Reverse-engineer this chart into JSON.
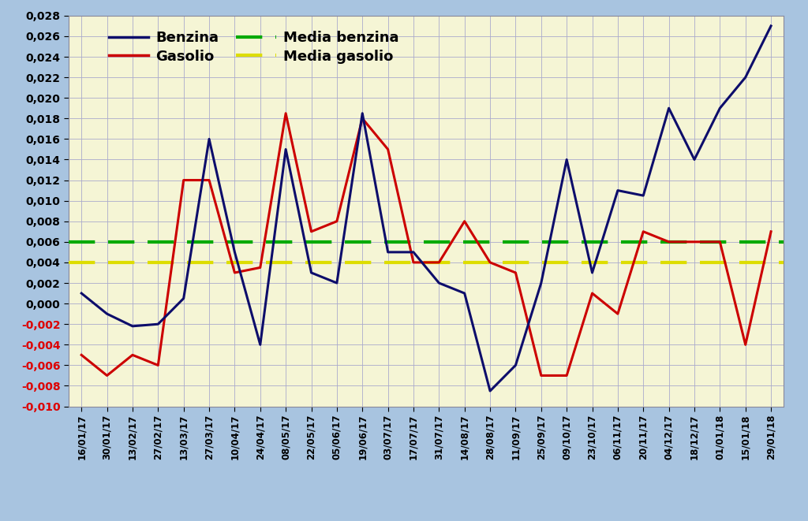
{
  "labels": [
    "16/01/17",
    "30/01/17",
    "13/02/17",
    "27/02/17",
    "13/03/17",
    "27/03/17",
    "10/04/17",
    "24/04/17",
    "08/05/17",
    "22/05/17",
    "05/06/17",
    "19/06/17",
    "03/07/17",
    "17/07/17",
    "31/07/17",
    "14/08/17",
    "28/08/17",
    "11/09/17",
    "25/09/17",
    "09/10/17",
    "23/10/17",
    "06/11/17",
    "20/11/17",
    "04/12/17",
    "18/12/17",
    "01/01/18",
    "15/01/18",
    "29/01/18"
  ],
  "benzina": [
    0.001,
    -0.001,
    -0.0022,
    -0.002,
    0.0005,
    0.016,
    0.005,
    -0.004,
    0.015,
    0.003,
    0.002,
    0.0185,
    0.005,
    0.005,
    0.002,
    0.001,
    -0.0085,
    -0.006,
    0.002,
    0.014,
    0.003,
    0.011,
    0.0105,
    0.019,
    0.014,
    0.019,
    0.022,
    0.027
  ],
  "gasolio": [
    -0.005,
    -0.007,
    -0.005,
    -0.006,
    0.012,
    0.012,
    0.003,
    0.0035,
    0.0185,
    0.007,
    0.008,
    0.018,
    0.015,
    0.004,
    0.004,
    0.008,
    0.004,
    0.003,
    -0.007,
    -0.007,
    0.001,
    -0.001,
    0.007,
    0.006,
    0.006,
    0.006,
    -0.004,
    0.007
  ],
  "media_benzina": 0.006,
  "media_gasolio": 0.004,
  "ylim_min": -0.01,
  "ylim_max": 0.028,
  "yticks": [
    -0.01,
    -0.008,
    -0.006,
    -0.004,
    -0.002,
    0.0,
    0.002,
    0.004,
    0.006,
    0.008,
    0.01,
    0.012,
    0.014,
    0.016,
    0.018,
    0.02,
    0.022,
    0.024,
    0.026,
    0.028
  ],
  "benzina_color": "#0d0d6b",
  "gasolio_color": "#cc0000",
  "media_benzina_color": "#00aa00",
  "media_gasolio_color": "#dddd00",
  "background_plot": "#f5f5d5",
  "background_fig": "#a8c4e0",
  "grid_color": "#aaaacc",
  "legend_benzina": "Benzina",
  "legend_gasolio": "Gasolio",
  "legend_media_benzina": "Media benzina",
  "legend_media_gasolio": "Media gasolio",
  "ytick_positive_color": "#000000",
  "ytick_negative_color": "#dd0000"
}
